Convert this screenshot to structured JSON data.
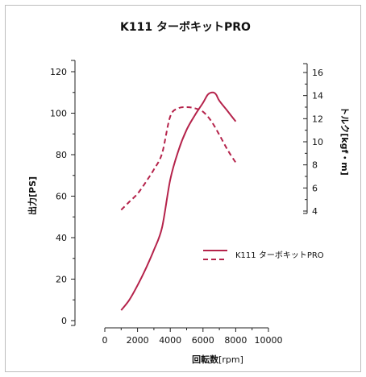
{
  "chart_data": {
    "type": "line",
    "title": "K111 ターボキットPRO",
    "xlabel": "回転数",
    "xlabel_unit": "[rpm]",
    "ylabel_left": "出力[PS]",
    "ylabel_right": "トルク[kgf・m]",
    "xlim": [
      0,
      10000
    ],
    "ylim_left": [
      0,
      120
    ],
    "ylim_right": [
      4,
      16
    ],
    "x_ticks": [
      "0",
      "2000",
      "4000",
      "6000",
      "8000",
      "10000"
    ],
    "y_left_ticks": [
      "0",
      "20",
      "40",
      "60",
      "80",
      "100",
      "120"
    ],
    "y_right_ticks": [
      "4",
      "6",
      "8",
      "10",
      "12",
      "14",
      "16"
    ],
    "series": [
      {
        "name": "K111 ターボキットPRO",
        "axis": "left",
        "style": "solid",
        "color": "#b5234b",
        "x": [
          1000,
          1500,
          2000,
          2500,
          3000,
          3500,
          4000,
          4500,
          5000,
          5500,
          6000,
          6300,
          6600,
          6800,
          7000,
          7500,
          8000
        ],
        "y": [
          5,
          10,
          17,
          25,
          34,
          45,
          68,
          82,
          92,
          99,
          105,
          109,
          110,
          109,
          106,
          101,
          96
        ]
      },
      {
        "name": "K111 ターボキットPRO",
        "axis": "right",
        "style": "dashed",
        "color": "#b5234b",
        "x": [
          1000,
          1500,
          2000,
          2500,
          3000,
          3500,
          4000,
          4500,
          5000,
          5500,
          6000,
          6500,
          7000,
          7500,
          8000
        ],
        "y": [
          4.1,
          4.8,
          5.5,
          6.5,
          7.6,
          9.0,
          12.2,
          12.9,
          13.0,
          12.9,
          12.6,
          11.8,
          10.6,
          9.3,
          8.2
        ]
      }
    ],
    "legend": {
      "position": "center-right",
      "label": "K111 ターボキットPRO"
    }
  }
}
